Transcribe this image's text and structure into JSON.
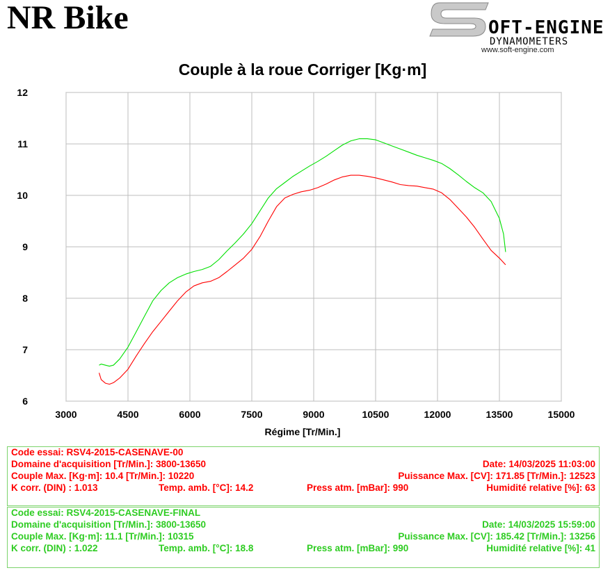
{
  "header": {
    "title": "NR Bike",
    "logo_main": "OFT-ENGINE",
    "logo_letter": "S",
    "logo_sub": "DYNAMOMETERS",
    "logo_url": "www.soft-engine.com"
  },
  "colors": {
    "series_red": "#ff0000",
    "series_green": "#00e000",
    "grid": "#bdbdbd",
    "border": "#7bd36b"
  },
  "chart_data": {
    "type": "line",
    "title": "Couple à la roue Corriger [Kg·m]",
    "xlabel": "Régime [Tr/Min.]",
    "ylabel": "",
    "xlim": [
      3000,
      15000
    ],
    "ylim": [
      6,
      12
    ],
    "xticks": [
      "3000",
      "4500",
      "6000",
      "7500",
      "9000",
      "10500",
      "12000",
      "13500",
      "15000"
    ],
    "yticks": [
      "6",
      "7",
      "8",
      "9",
      "10",
      "11",
      "12"
    ],
    "grid": true,
    "series": [
      {
        "name": "RSV4-2015-CASENAVE-00",
        "color": "#ff0000",
        "x": [
          3800,
          3850,
          3950,
          4050,
          4150,
          4300,
          4500,
          4700,
          4900,
          5100,
          5300,
          5500,
          5700,
          5900,
          6100,
          6300,
          6500,
          6700,
          6900,
          7100,
          7300,
          7500,
          7700,
          7900,
          8100,
          8300,
          8500,
          8700,
          8900,
          9100,
          9300,
          9500,
          9700,
          9900,
          10100,
          10300,
          10500,
          10700,
          10900,
          11100,
          11300,
          11500,
          11700,
          11900,
          12100,
          12300,
          12500,
          12700,
          12900,
          13100,
          13300,
          13500,
          13650
        ],
        "values": [
          6.55,
          6.42,
          6.35,
          6.33,
          6.36,
          6.45,
          6.62,
          6.88,
          7.12,
          7.35,
          7.55,
          7.75,
          7.95,
          8.12,
          8.24,
          8.3,
          8.33,
          8.4,
          8.52,
          8.65,
          8.78,
          8.95,
          9.2,
          9.5,
          9.78,
          9.95,
          10.02,
          10.07,
          10.1,
          10.15,
          10.22,
          10.3,
          10.36,
          10.39,
          10.39,
          10.37,
          10.34,
          10.3,
          10.26,
          10.21,
          10.19,
          10.18,
          10.15,
          10.12,
          10.05,
          9.92,
          9.75,
          9.58,
          9.38,
          9.15,
          8.93,
          8.78,
          8.65
        ]
      },
      {
        "name": "RSV4-2015-CASENAVE-FINAL",
        "color": "#00e000",
        "x": [
          3800,
          3850,
          3950,
          4050,
          4150,
          4300,
          4500,
          4700,
          4900,
          5100,
          5300,
          5500,
          5700,
          5900,
          6100,
          6300,
          6500,
          6700,
          6900,
          7100,
          7300,
          7500,
          7700,
          7900,
          8100,
          8300,
          8500,
          8700,
          8900,
          9100,
          9300,
          9500,
          9700,
          9900,
          10100,
          10300,
          10500,
          10700,
          10900,
          11100,
          11300,
          11500,
          11700,
          11900,
          12100,
          12300,
          12500,
          12700,
          12900,
          13100,
          13300,
          13500,
          13600,
          13650
        ],
        "values": [
          6.7,
          6.72,
          6.7,
          6.68,
          6.7,
          6.82,
          7.05,
          7.35,
          7.65,
          7.95,
          8.15,
          8.3,
          8.4,
          8.47,
          8.52,
          8.56,
          8.62,
          8.75,
          8.92,
          9.08,
          9.25,
          9.45,
          9.7,
          9.95,
          10.13,
          10.25,
          10.37,
          10.47,
          10.57,
          10.66,
          10.76,
          10.87,
          10.98,
          11.06,
          11.1,
          11.1,
          11.08,
          11.02,
          10.96,
          10.9,
          10.84,
          10.78,
          10.73,
          10.68,
          10.62,
          10.52,
          10.4,
          10.27,
          10.15,
          10.05,
          9.88,
          9.55,
          9.25,
          8.9
        ]
      }
    ]
  },
  "info_red": {
    "code": "Code essai: RSV4-2015-CASENAVE-00",
    "domaine": "Domaine d'acquisition [Tr/Min.]: 3800-13650",
    "date": "Date: 14/03/2025   11:03:00",
    "couple": "Couple Max. [Kg·m]: 10.4   [Tr/Min.]: 10220",
    "puissance": "Puissance Max. [CV]: 171.85   [Tr/Min.]: 12523",
    "kcorr": "K corr. (DIN) : 1.013",
    "temp": "Temp. amb. [°C]: 14.2",
    "press": "Press atm. [mBar]: 990",
    "humid": "Humidité relative [%]: 63"
  },
  "info_green": {
    "code": "Code essai: RSV4-2015-CASENAVE-FINAL",
    "domaine": "Domaine d'acquisition [Tr/Min.]: 3800-13650",
    "date": "Date: 14/03/2025   15:59:00",
    "couple": "Couple Max. [Kg·m]: 11.1   [Tr/Min.]: 10315",
    "puissance": "Puissance Max. [CV]: 185.42   [Tr/Min.]: 13256",
    "kcorr": "K corr. (DIN) : 1.022",
    "temp": "Temp. amb. [°C]: 18.8",
    "press": "Press atm. [mBar]: 990",
    "humid": "Humidité relative [%]: 41"
  }
}
